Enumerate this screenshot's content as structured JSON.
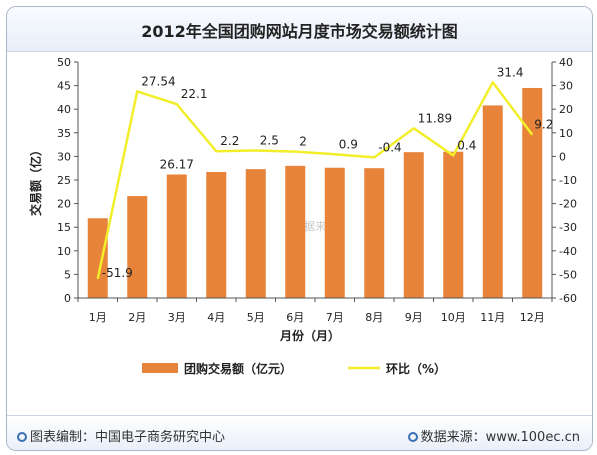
{
  "chart_data": {
    "type": "bar",
    "title": "2012年全国团购网站月度市场交易额统计图",
    "categories": [
      "1月",
      "2月",
      "3月",
      "4月",
      "5月",
      "6月",
      "7月",
      "8月",
      "9月",
      "10月",
      "11月",
      "12月"
    ],
    "xlabel": "月份（月）",
    "ylabel": "交易额（亿）",
    "ylim": [
      0,
      50
    ],
    "yticks": [
      "0",
      "5",
      "10",
      "15",
      "20",
      "25",
      "30",
      "35",
      "40",
      "45",
      "50"
    ],
    "y2lim": [
      -60,
      40
    ],
    "y2ticks": [
      "-60",
      "-50",
      "-40",
      "-30",
      "-20",
      "-10",
      "0",
      "10",
      "20",
      "30",
      "40"
    ],
    "grid": false,
    "legend_position": "bottom",
    "series": [
      {
        "name": "团购交易额（亿元）",
        "type": "bar",
        "color": "#e8843a",
        "axis": "left",
        "values": [
          16.9,
          21.6,
          26.17,
          26.7,
          27.3,
          28.0,
          27.6,
          27.5,
          30.9,
          31.0,
          40.8,
          44.5
        ]
      },
      {
        "name": "环比（%）",
        "type": "line",
        "color": "#f2ee2a",
        "axis": "right",
        "values": [
          -51.9,
          27.54,
          22.1,
          2.2,
          2.5,
          2,
          0.9,
          -0.4,
          11.89,
          0.4,
          31.4,
          9.2
        ],
        "labels": [
          "-51.9",
          "27.54",
          "22.1",
          "2.2",
          "2.5",
          "2",
          "0.9",
          "-0.4",
          "11.89",
          "0.4",
          "31.4",
          "9.2"
        ]
      }
    ],
    "bar_labels": [
      {
        "index": 2,
        "text": "26.17"
      }
    ],
    "watermark": "数据来源"
  },
  "footer": {
    "credit_left": "图表编制：中国电子商务研究中心",
    "credit_right": "数据来源：www.100ec.cn"
  },
  "colors": {
    "frame_border": "#aab6cc",
    "title_bar": "#e8eef8"
  }
}
